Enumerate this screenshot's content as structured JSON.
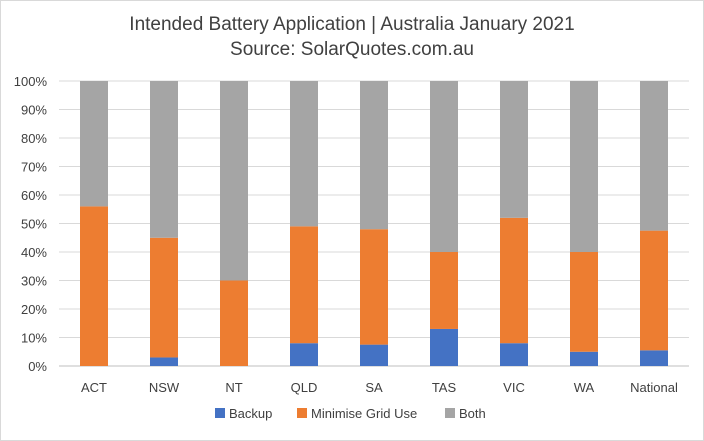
{
  "chart_data": {
    "type": "bar",
    "stacked": true,
    "title": "Intended Battery Application | Australia January 2021",
    "subtitle": "Source: SolarQuotes.com.au",
    "categories": [
      "ACT",
      "NSW",
      "NT",
      "QLD",
      "SA",
      "TAS",
      "VIC",
      "WA",
      "National"
    ],
    "series": [
      {
        "name": "Backup",
        "color": "#4472c4",
        "values": [
          0,
          3,
          0,
          8,
          7.5,
          13,
          8,
          5,
          5.5
        ]
      },
      {
        "name": "Minimise Grid Use",
        "color": "#ed7d31",
        "values": [
          56,
          42,
          30,
          41,
          40.5,
          27,
          44,
          35,
          42
        ]
      },
      {
        "name": "Both",
        "color": "#a5a5a5",
        "values": [
          44,
          55,
          70,
          51,
          52,
          60,
          48,
          60,
          52.5
        ]
      }
    ],
    "ylim": [
      0,
      100
    ],
    "yticks": [
      "0%",
      "10%",
      "20%",
      "30%",
      "40%",
      "50%",
      "60%",
      "70%",
      "80%",
      "90%",
      "100%"
    ],
    "grid": true,
    "legend_position": "bottom",
    "xlabel": "",
    "ylabel": ""
  }
}
